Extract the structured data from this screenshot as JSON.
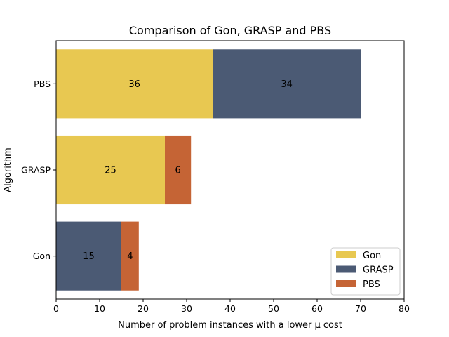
{
  "chart_data": {
    "type": "bar",
    "orientation": "horizontal",
    "stacked": true,
    "title": "Comparison of Gon, GRASP and PBS",
    "xlabel": "Number of problem instances with a lower μ cost",
    "ylabel": "Algorithm",
    "categories": [
      "Gon",
      "GRASP",
      "PBS"
    ],
    "xlim": [
      0,
      80
    ],
    "xticks": [
      0,
      10,
      20,
      30,
      40,
      50,
      60,
      70,
      80
    ],
    "grid": false,
    "legend_position": "lower-right",
    "series": [
      {
        "name": "Gon",
        "color": "#e8c851",
        "values": [
          0,
          25,
          36
        ]
      },
      {
        "name": "GRASP",
        "color": "#4b5a74",
        "values": [
          15,
          0,
          34
        ]
      },
      {
        "name": "PBS",
        "color": "#c56435",
        "values": [
          4,
          6,
          0
        ]
      }
    ]
  }
}
